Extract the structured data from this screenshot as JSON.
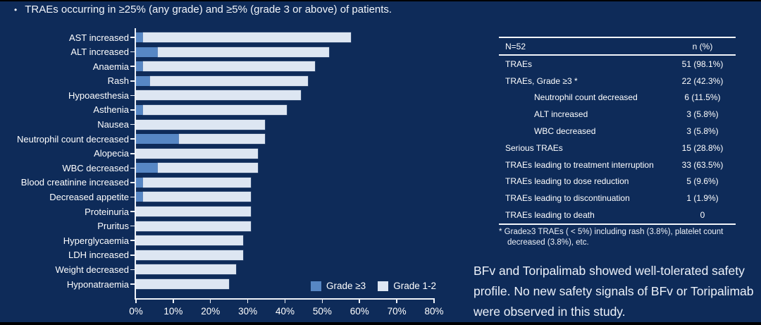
{
  "slide": {
    "bullet": "•",
    "title_bullet": "TRAEs occurring in ≥25% (any grade) and ≥5% (grade 3 or above) of patients.",
    "conclusion_text": "BFv and Toripalimab showed well-tolerated safety profile. No new safety signals of BFv or Toripalimab were observed in this study.",
    "colors": {
      "background": "#0E2B59",
      "grade3_blue": "#5787C4",
      "grade12_light": "#DDE6F2",
      "text": "#FFFFFF"
    }
  },
  "chart_data": {
    "type": "bar",
    "orientation": "horizontal",
    "stacked": true,
    "categories": [
      "AST increased",
      "ALT increased",
      "Anaemia",
      "Rash",
      "Hypoaesthesia",
      "Asthenia",
      "Nausea",
      "Neutrophil count decreased",
      "Alopecia",
      "WBC decreased",
      "Blood creatinine increased",
      "Decreased appetite",
      "Proteinuria",
      "Pruritus",
      "Hyperglycaemia",
      "LDH increased",
      "Weight decreased",
      "Hyponatraemia"
    ],
    "series": [
      {
        "name": "Grade ≥3",
        "color": "#5787C4",
        "values": [
          1.9,
          5.8,
          1.9,
          3.8,
          0,
          1.9,
          0,
          11.5,
          0,
          5.8,
          1.9,
          1.9,
          0,
          0,
          0,
          0,
          0,
          0
        ]
      },
      {
        "name": "Grade 1-2",
        "color": "#DDE6F2",
        "values": [
          55.8,
          46.1,
          46.2,
          42.4,
          44.2,
          38.5,
          34.6,
          23.1,
          32.7,
          26.9,
          28.9,
          28.9,
          30.8,
          30.8,
          28.8,
          28.8,
          26.9,
          25.0
        ]
      }
    ],
    "any_grade_totals_pct": [
      57.7,
      51.9,
      48.1,
      46.2,
      44.2,
      40.4,
      34.6,
      34.6,
      32.7,
      32.7,
      30.8,
      30.8,
      30.8,
      30.8,
      28.8,
      28.8,
      26.9,
      25.0
    ],
    "xlim": [
      0,
      80
    ],
    "x_tick_labels": [
      "0%",
      "10%",
      "20%",
      "30%",
      "40%",
      "50%",
      "60%",
      "70%",
      "80%"
    ],
    "grid": false,
    "legend_position": "inside-bottom-right"
  },
  "table": {
    "header": [
      "N=52",
      "n (%)"
    ],
    "rows": [
      {
        "label": "TRAEs",
        "value": "51 (98.1%)",
        "indent": false
      },
      {
        "label": "TRAEs, Grade ≥3 *",
        "value": "22 (42.3%)",
        "indent": false
      },
      {
        "label": "Neutrophil count decreased",
        "value": "6 (11.5%)",
        "indent": true
      },
      {
        "label": "ALT increased",
        "value": "3 (5.8%)",
        "indent": true
      },
      {
        "label": "WBC decreased",
        "value": "3 (5.8%)",
        "indent": true
      },
      {
        "label": "Serious TRAEs",
        "value": "15 (28.8%)",
        "indent": false
      },
      {
        "label": "TRAEs leading to treatment interruption",
        "value": "33 (63.5%)",
        "indent": false
      },
      {
        "label": "TRAEs leading to dose reduction",
        "value": "5 (9.6%)",
        "indent": false
      },
      {
        "label": "TRAEs leading to discontinuation",
        "value": "1 (1.9%)",
        "indent": false
      },
      {
        "label": "TRAEs leading to death",
        "value": "0",
        "indent": false
      }
    ],
    "footnote": "* Grade≥3 TRAEs ( < 5%) including rash (3.8%), platelet count decreased (3.8%), etc."
  }
}
